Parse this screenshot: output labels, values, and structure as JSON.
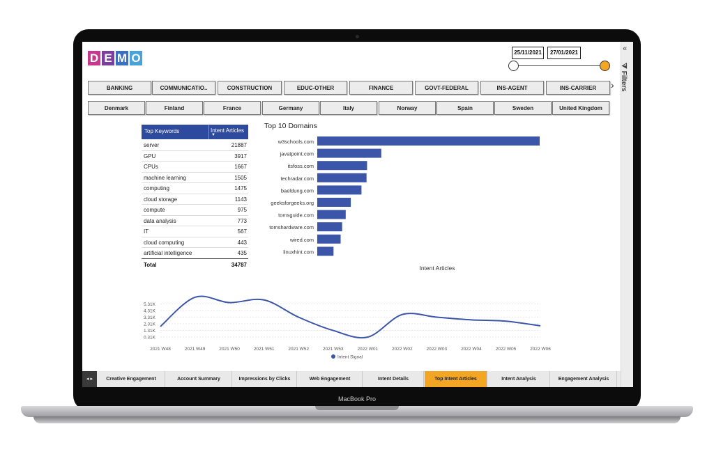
{
  "device_label": "MacBook Pro",
  "logo": {
    "letters": [
      {
        "char": "D",
        "color": "#c6398e"
      },
      {
        "char": "E",
        "color": "#7b3fa0"
      },
      {
        "char": "M",
        "color": "#3b6fc4"
      },
      {
        "char": "O",
        "color": "#4aa3d8"
      }
    ]
  },
  "date_range": {
    "start": "25/11/2021",
    "end": "27/01/2021"
  },
  "filters_pane": {
    "label": "Filters",
    "collapse_icon": "«"
  },
  "industry_slicer": [
    "BANKING",
    "COMMUNICATIO..",
    "CONSTRUCTION",
    "EDUC-OTHER",
    "FINANCE",
    "GOVT-FEDERAL",
    "INS-AGENT",
    "INS-CARRIER"
  ],
  "country_slicer": [
    "Denmark",
    "Finland",
    "France",
    "Germany",
    "Italy",
    "Norway",
    "Spain",
    "Sweden",
    "United Kingdom"
  ],
  "keywords_table": {
    "headers": [
      "Top Keywords",
      "Intent Articles"
    ],
    "rows": [
      [
        "server",
        "21887"
      ],
      [
        "GPU",
        "3917"
      ],
      [
        "CPUs",
        "1667"
      ],
      [
        "machine learning",
        "1505"
      ],
      [
        "computing",
        "1475"
      ],
      [
        "cloud storage",
        "1143"
      ],
      [
        "compute",
        "975"
      ],
      [
        "data analysis",
        "773"
      ],
      [
        "IT",
        "567"
      ],
      [
        "cloud computing",
        "443"
      ],
      [
        "artificial intelligence",
        "435"
      ]
    ],
    "total_label": "Total",
    "total_value": "34787"
  },
  "chart_data": [
    {
      "type": "bar",
      "orientation": "horizontal",
      "title": "Top 10 Domains",
      "xlabel": "Intent Articles",
      "categories": [
        "w3schools.com",
        "javatpoint.com",
        "itsfoss.com",
        "techradar.com",
        "baeldung.com",
        "geeksforgeeks.org",
        "tomsguide.com",
        "tomshardware.com",
        "wired.com",
        "linuxhint.com"
      ],
      "values": [
        21887,
        6300,
        4900,
        4850,
        4350,
        3300,
        2800,
        2450,
        2300,
        1600
      ],
      "color": "#3b55a8"
    },
    {
      "type": "line",
      "title": "",
      "x": [
        "2021 W48",
        "2021 W49",
        "2021 W50",
        "2021 W51",
        "2021 W52",
        "2021 W53",
        "2022 W01",
        "2022 W02",
        "2022 W03",
        "2022 W04",
        "2022 W05",
        "2022 W06"
      ],
      "series": [
        {
          "name": "Intent Signal",
          "values": [
            1900,
            6300,
            5500,
            5900,
            3300,
            1300,
            300,
            3700,
            3300,
            2900,
            2700,
            2000
          ],
          "color": "#3b55a8"
        }
      ],
      "y_ticks": [
        "5.31K",
        "4.31K",
        "3.31K",
        "2.31K",
        "1.31K",
        "0.31K"
      ],
      "ylim": [
        0,
        6500
      ],
      "grid": true,
      "legend": "bottom"
    }
  ],
  "bottom_tabs": {
    "nav_arrows": "◂ ▸",
    "tabs": [
      "Creative Engagement",
      "Account Summary",
      "Impressions by Clicks",
      "Web Engagement",
      "Intent Details",
      "Top Intent Articles",
      "Intent Analysis",
      "Engagement Analysis"
    ],
    "active_index": 5,
    "active_color": "#f3a623"
  }
}
